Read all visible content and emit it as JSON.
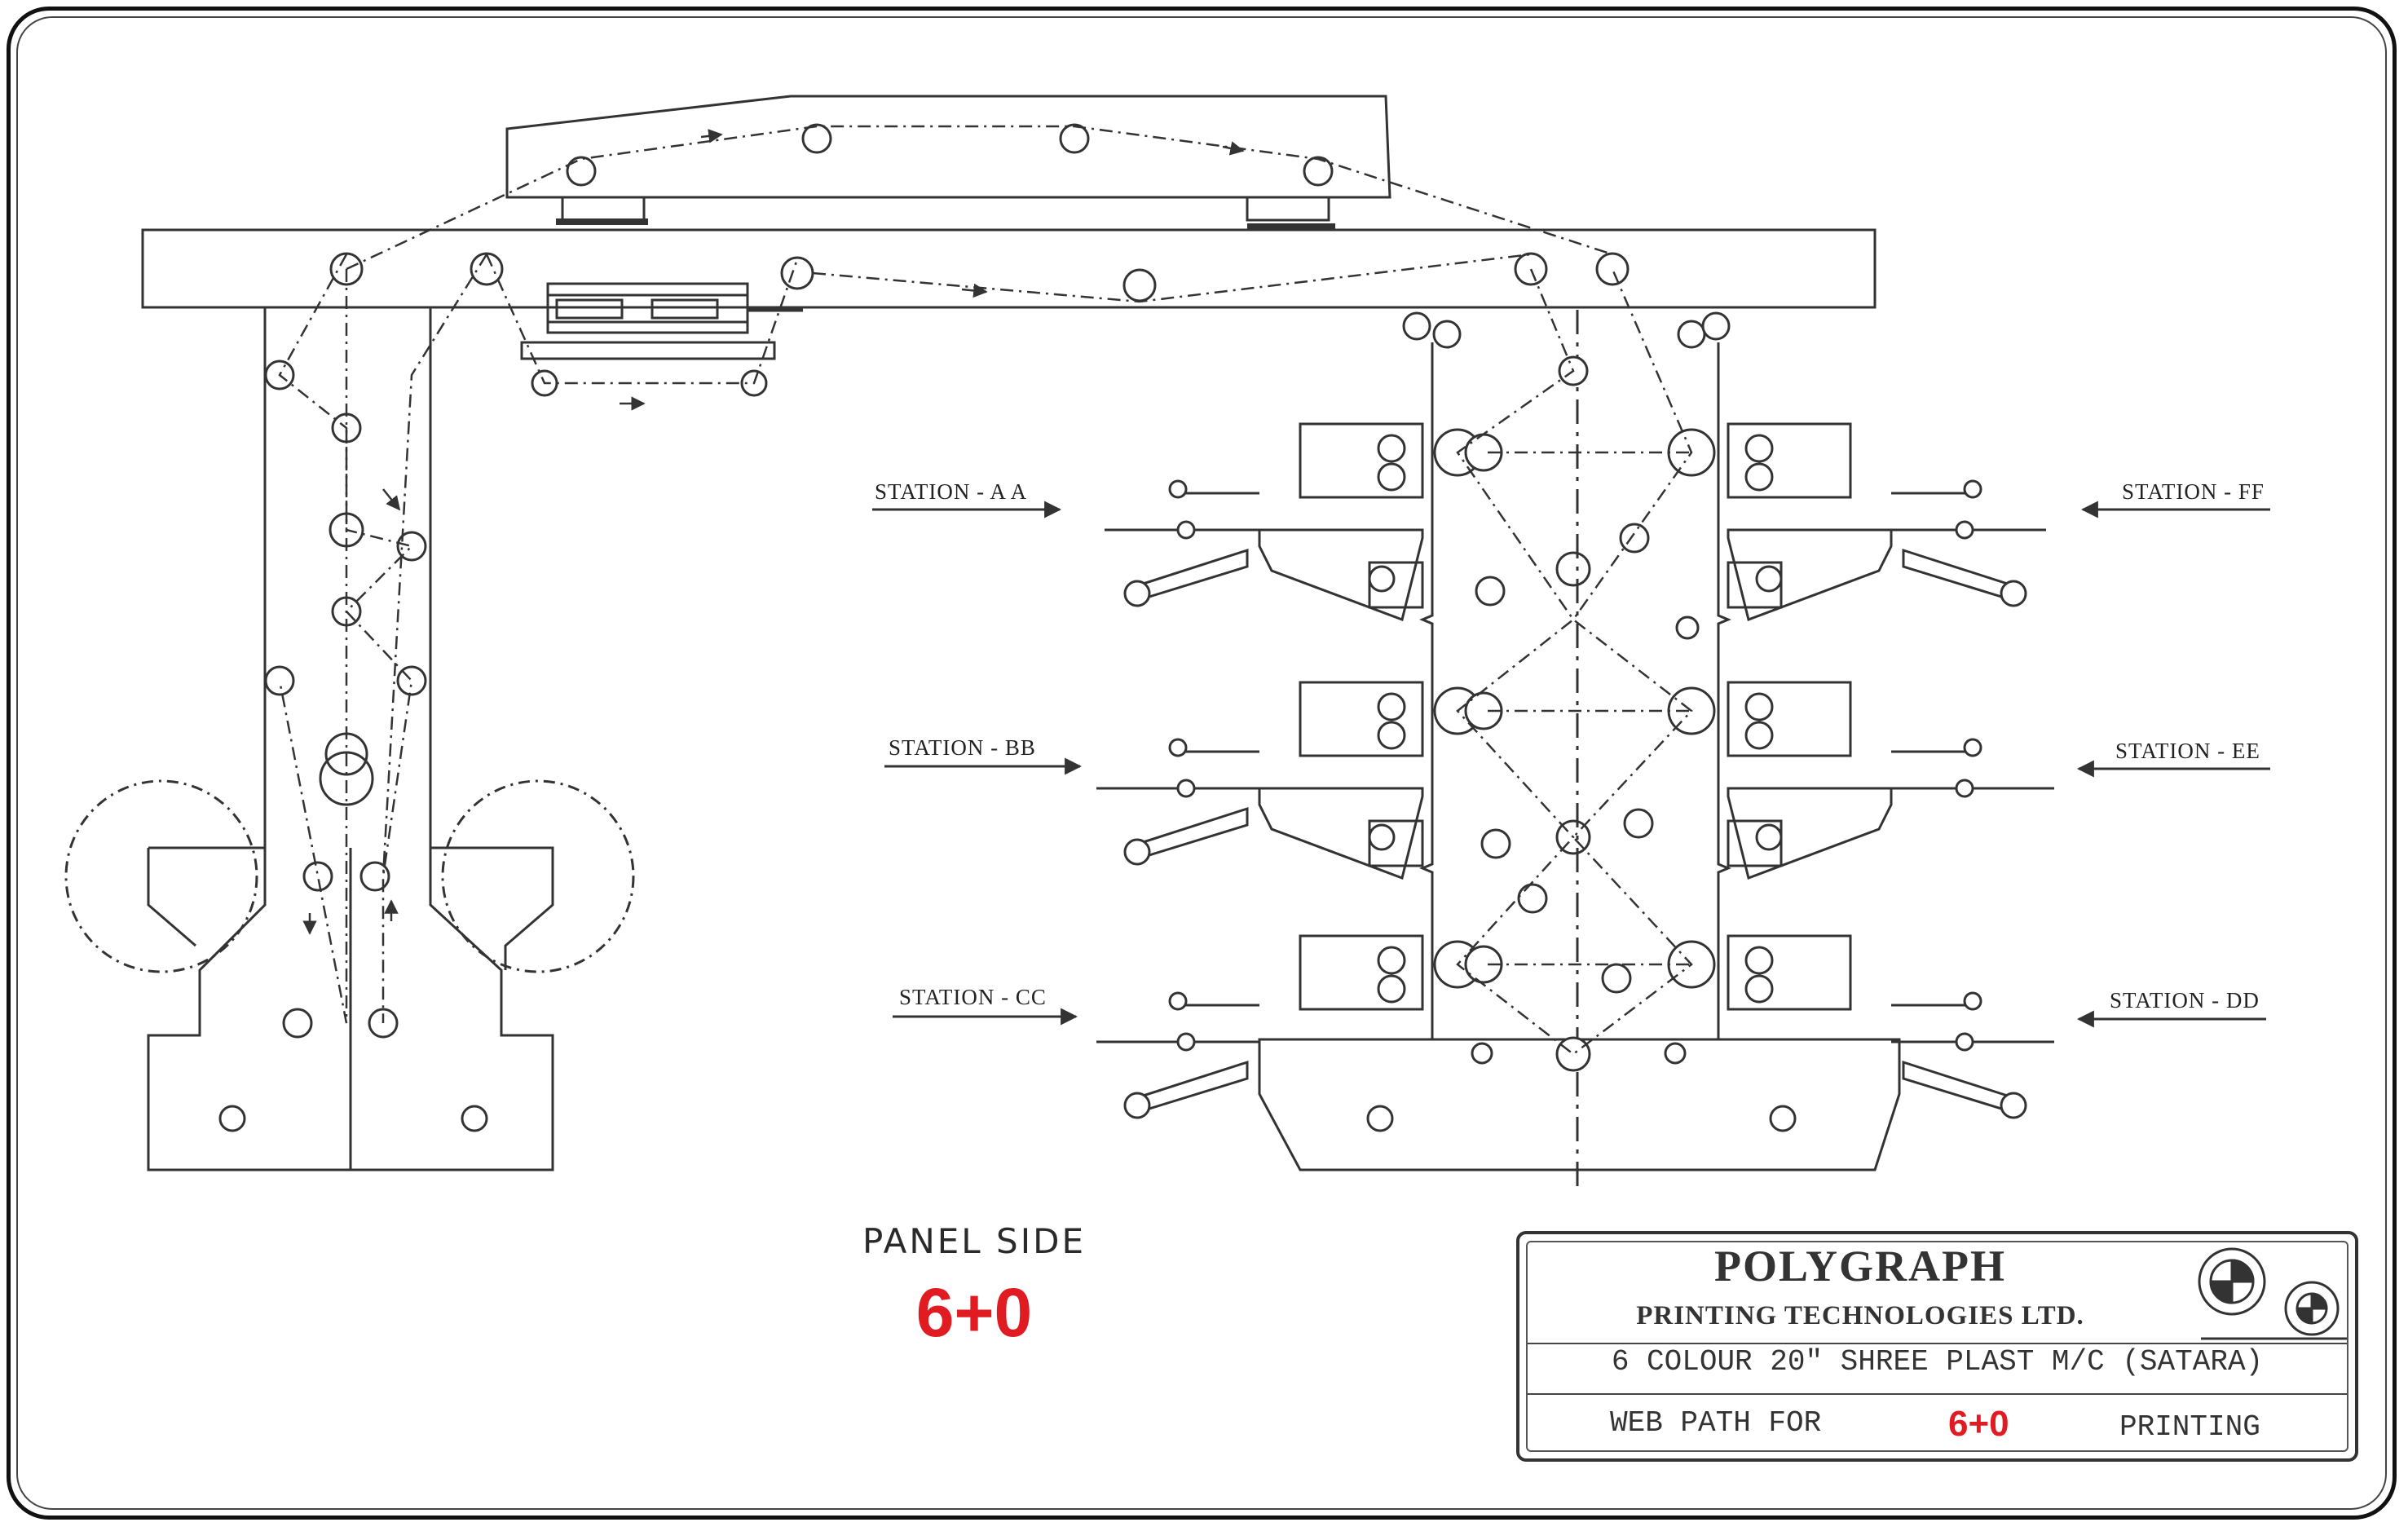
{
  "stations": {
    "aa": "STATION - A A",
    "bb": "STATION - BB",
    "cc": "STATION - CC",
    "ff": "STATION - FF",
    "ee": "STATION - EE",
    "dd": "STATION - DD"
  },
  "panel": {
    "title": "PANEL SIDE",
    "code": "6+0"
  },
  "title_block": {
    "company": "POLYGRAPH",
    "company_sub": "PRINTING TECHNOLOGIES LTD.",
    "machine": "6 COLOUR 20\" SHREE PLAST M/C (SATARA)",
    "path_prefix": "WEB PATH FOR",
    "path_code": "6+0",
    "path_suffix": "PRINTING"
  },
  "colors": {
    "line": "#333333",
    "accent_red": "#e11b22"
  }
}
